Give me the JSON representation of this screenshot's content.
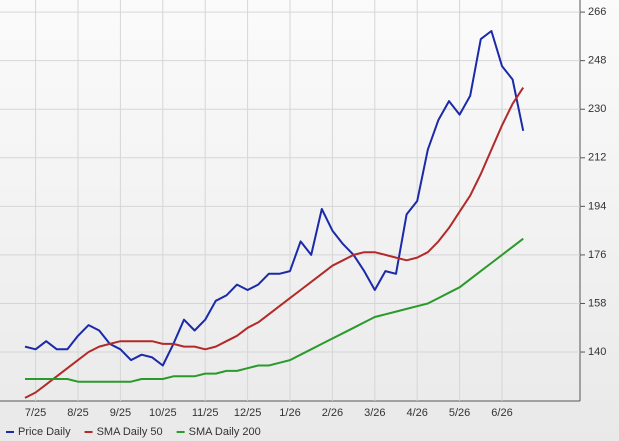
{
  "chart_data": {
    "type": "line",
    "categories": [
      null,
      "7/25",
      null,
      null,
      null,
      "8/25",
      null,
      null,
      null,
      "9/25",
      null,
      null,
      null,
      "10/25",
      null,
      null,
      null,
      "11/25",
      null,
      null,
      null,
      "12/25",
      null,
      null,
      null,
      "1/26",
      null,
      null,
      null,
      "2/26",
      null,
      null,
      null,
      "3/26",
      null,
      null,
      null,
      "4/26",
      null,
      null,
      null,
      "5/26",
      null,
      null,
      null,
      "6/26",
      null,
      null
    ],
    "series": [
      {
        "name": "Price Daily",
        "color": "#1a2aa8",
        "values": [
          142,
          141,
          144,
          141,
          141,
          146,
          150,
          148,
          143,
          141,
          137,
          139,
          138,
          135,
          143,
          152,
          148,
          152,
          159,
          161,
          165,
          163,
          165,
          169,
          169,
          170,
          181,
          176,
          193,
          185,
          180,
          176,
          170,
          163,
          170,
          169,
          191,
          196,
          215,
          226,
          233,
          228,
          235,
          256,
          259,
          246,
          241,
          222
        ]
      },
      {
        "name": "SMA Daily 50",
        "color": "#b22a2a",
        "values": [
          123,
          125,
          128,
          131,
          134,
          137,
          140,
          142,
          143,
          144,
          144,
          144,
          144,
          143,
          143,
          142,
          142,
          141,
          142,
          144,
          146,
          149,
          151,
          154,
          157,
          160,
          163,
          166,
          169,
          172,
          174,
          176,
          177,
          177,
          176,
          175,
          174,
          175,
          177,
          181,
          186,
          192,
          198,
          206,
          215,
          224,
          232,
          238
        ]
      },
      {
        "name": "SMA Daily 200",
        "color": "#2a9a2a",
        "values": [
          130,
          130,
          130,
          130,
          130,
          129,
          129,
          129,
          129,
          129,
          129,
          130,
          130,
          130,
          131,
          131,
          131,
          132,
          132,
          133,
          133,
          134,
          135,
          135,
          136,
          137,
          139,
          141,
          143,
          145,
          147,
          149,
          151,
          153,
          154,
          155,
          156,
          157,
          158,
          160,
          162,
          164,
          167,
          170,
          173,
          176,
          179,
          182
        ]
      }
    ],
    "ylim": [
      122,
      269
    ],
    "yticks": [
      140,
      158,
      176,
      194,
      212,
      230,
      248,
      266
    ],
    "grid": true,
    "legend": "lower left"
  }
}
